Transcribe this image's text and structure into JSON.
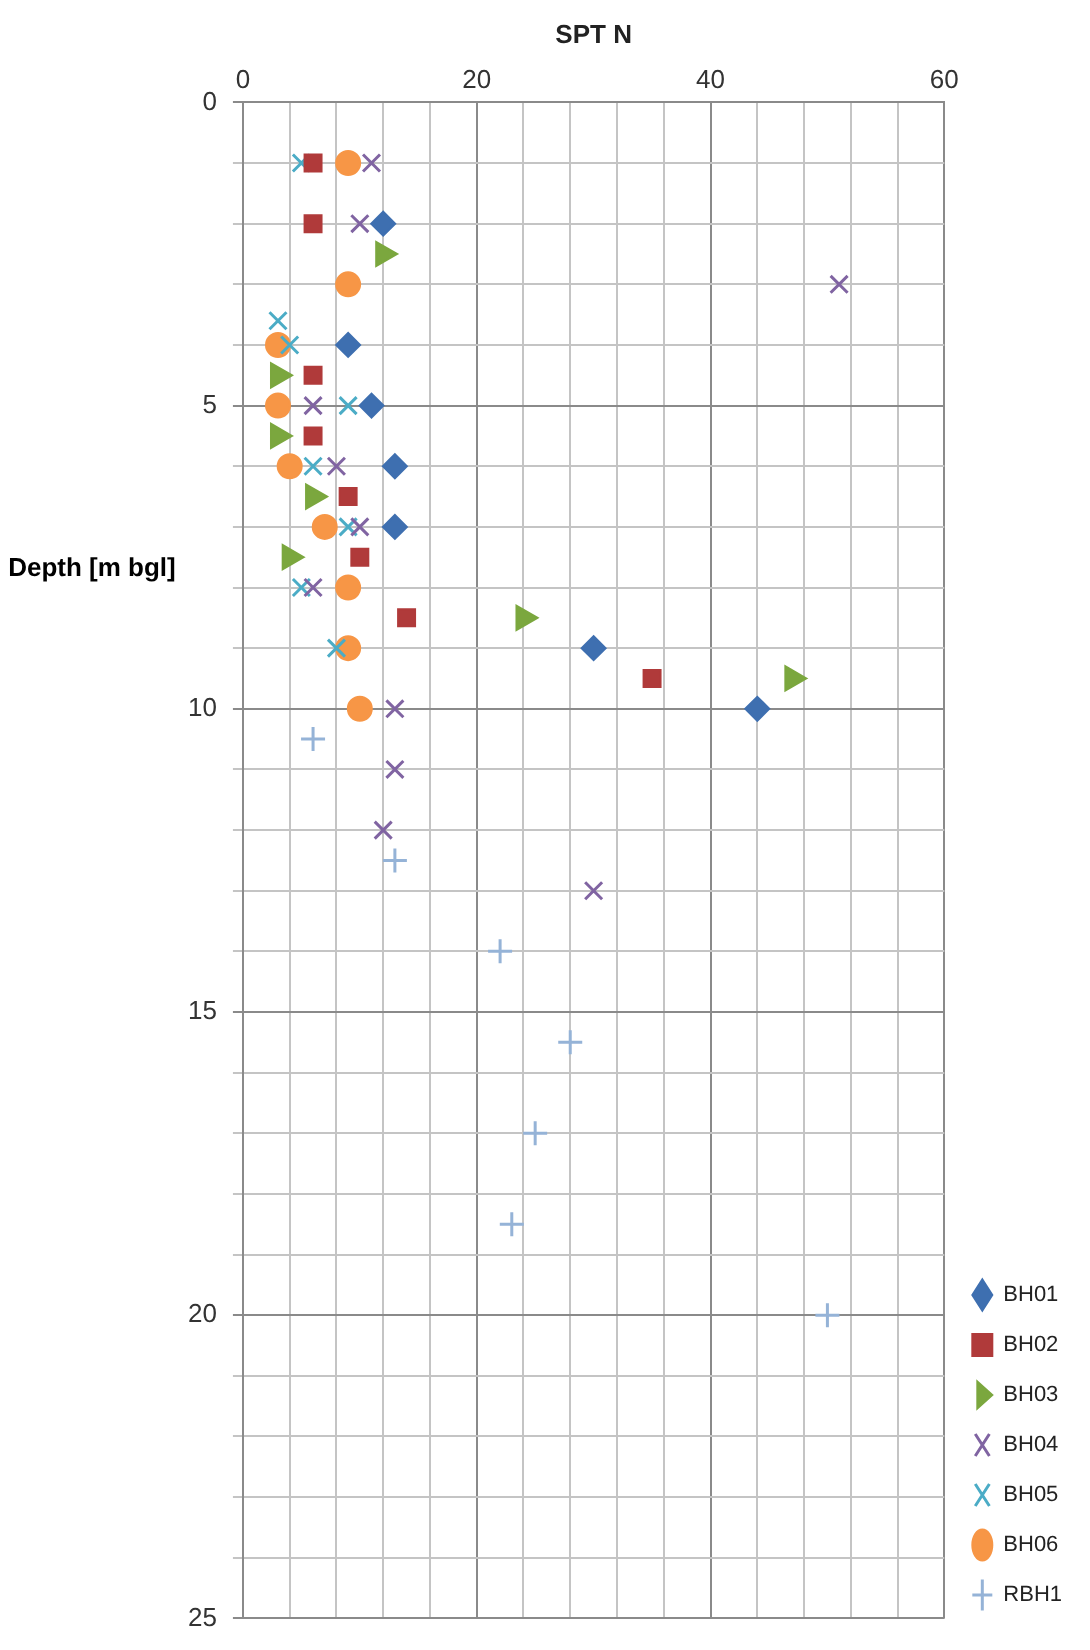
{
  "chart_data": {
    "type": "scatter",
    "xlabel": "SPT N",
    "ylabel": "Depth [m bgl]",
    "xlim": [
      0,
      60
    ],
    "ylim": [
      25,
      0
    ],
    "xticks": [
      0,
      {
        "value": 4,
        "label": null
      },
      {
        "value": 8,
        "label": null
      },
      {
        "value": 12,
        "label": null
      },
      {
        "value": 16,
        "label": null
      },
      20,
      {
        "value": 24,
        "label": null
      },
      {
        "value": 28,
        "label": null
      },
      {
        "value": 32,
        "label": null
      },
      {
        "value": 36,
        "label": null
      },
      40,
      {
        "value": 44,
        "label": null
      },
      {
        "value": 48,
        "label": null
      },
      {
        "value": 52,
        "label": null
      },
      {
        "value": 56,
        "label": null
      },
      60
    ],
    "yticks": [
      0,
      {
        "value": 1,
        "label": null
      },
      {
        "value": 2,
        "label": null
      },
      {
        "value": 3,
        "label": null
      },
      {
        "value": 4,
        "label": null
      },
      5,
      {
        "value": 6,
        "label": null
      },
      {
        "value": 7,
        "label": null
      },
      {
        "value": 8,
        "label": null
      },
      {
        "value": 9,
        "label": null
      },
      10,
      {
        "value": 11,
        "label": null
      },
      {
        "value": 12,
        "label": null
      },
      {
        "value": 13,
        "label": null
      },
      {
        "value": 14,
        "label": null
      },
      15,
      {
        "value": 16,
        "label": null
      },
      {
        "value": 17,
        "label": null
      },
      {
        "value": 18,
        "label": null
      },
      {
        "value": 19,
        "label": null
      },
      20,
      {
        "value": 21,
        "label": null
      },
      {
        "value": 22,
        "label": null
      },
      {
        "value": 23,
        "label": null
      },
      {
        "value": 24,
        "label": null
      },
      25
    ],
    "grid": true,
    "legend": "bottom right",
    "series": [
      {
        "name": "BH01",
        "color": "#3e6fb0",
        "marker": "diamond",
        "x": [
          12,
          9,
          11,
          13,
          13,
          30,
          44
        ],
        "values": [
          2,
          4,
          5,
          6,
          7,
          9,
          10
        ]
      },
      {
        "name": "BH02",
        "color": "#b03a3a",
        "marker": "square",
        "x": [
          6,
          6,
          6,
          6,
          9,
          10,
          14,
          35
        ],
        "values": [
          1,
          2,
          4.5,
          5.5,
          6.5,
          7.5,
          8.5,
          9.5
        ]
      },
      {
        "name": "BH03",
        "color": "#7ba73e",
        "marker": "triangle",
        "x": [
          12,
          3,
          3,
          6,
          4,
          24,
          47
        ],
        "values": [
          2.5,
          4.5,
          5.5,
          6.5,
          7.5,
          8.5,
          9.5
        ]
      },
      {
        "name": "BH04",
        "color": "#8064a2",
        "marker": "cross",
        "x": [
          11,
          10,
          51,
          6,
          8,
          10,
          6,
          13,
          13,
          12,
          30
        ],
        "values": [
          1,
          2,
          3,
          5,
          6,
          7,
          8,
          10,
          11,
          12,
          13
        ]
      },
      {
        "name": "BH05",
        "color": "#4bacc6",
        "marker": "cross",
        "x": [
          5,
          3,
          4,
          9,
          6,
          9,
          5,
          8
        ],
        "values": [
          1,
          3.6,
          4,
          5,
          6,
          7,
          8,
          9
        ]
      },
      {
        "name": "BH06",
        "color": "#f79646",
        "marker": "circle",
        "x": [
          9,
          9,
          3,
          3,
          4,
          7,
          9,
          9,
          10
        ],
        "values": [
          1,
          3,
          4,
          5,
          6,
          7,
          8,
          9,
          10
        ]
      },
      {
        "name": "RBH1",
        "color": "#95b3d7",
        "marker": "plus",
        "x": [
          6,
          13,
          22,
          28,
          25,
          23,
          50
        ],
        "values": [
          10.5,
          12.5,
          14,
          15.5,
          17,
          18.5,
          20
        ]
      }
    ]
  }
}
